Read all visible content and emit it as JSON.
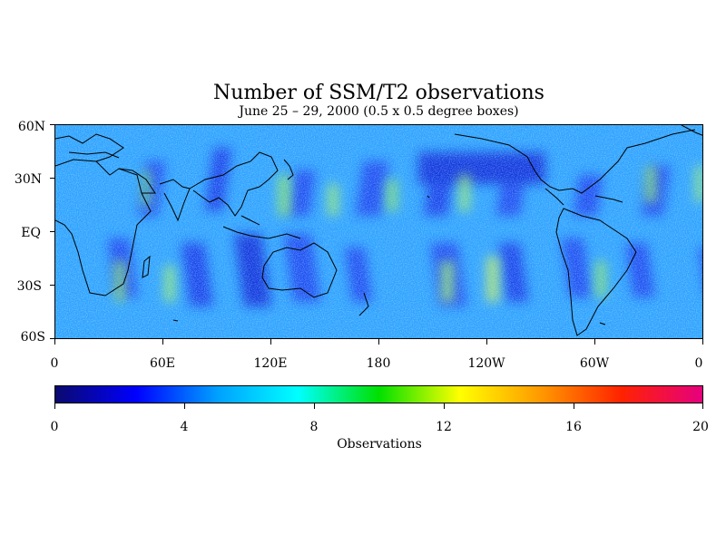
{
  "title": "Number of SSM/T2 observations",
  "subtitle": "June 25 – 29, 2000 (0.5 x 0.5 degree boxes)",
  "lat_labels": [
    "60N",
    "30N",
    "EQ",
    "30S",
    "60S"
  ],
  "lon_labels": [
    "0",
    "60E",
    "120E",
    "180",
    "120W",
    "60W",
    "0"
  ],
  "colorbar": {
    "ticks": [
      "0",
      "4",
      "8",
      "12",
      "16",
      "20"
    ],
    "title": "Observations",
    "colors": [
      "#0a0a6e",
      "#0000ff",
      "#00a0ff",
      "#00ffff",
      "#00e000",
      "#ffff00",
      "#ff9900",
      "#ff2200",
      "#e6007e"
    ]
  },
  "chart_data": {
    "type": "heatmap",
    "title": "Number of SSM/T2 observations",
    "subtitle": "June 25 – 29, 2000 (0.5 x 0.5 degree boxes)",
    "xlabel": "",
    "ylabel": "",
    "colorbar_label": "Observations",
    "zlim": [
      0,
      20
    ],
    "lat_range": [
      -60,
      60
    ],
    "lon_range": [
      0,
      360
    ],
    "grid": "0.5 x 0.5 degree",
    "typical_value_range": [
      3,
      11
    ]
  }
}
